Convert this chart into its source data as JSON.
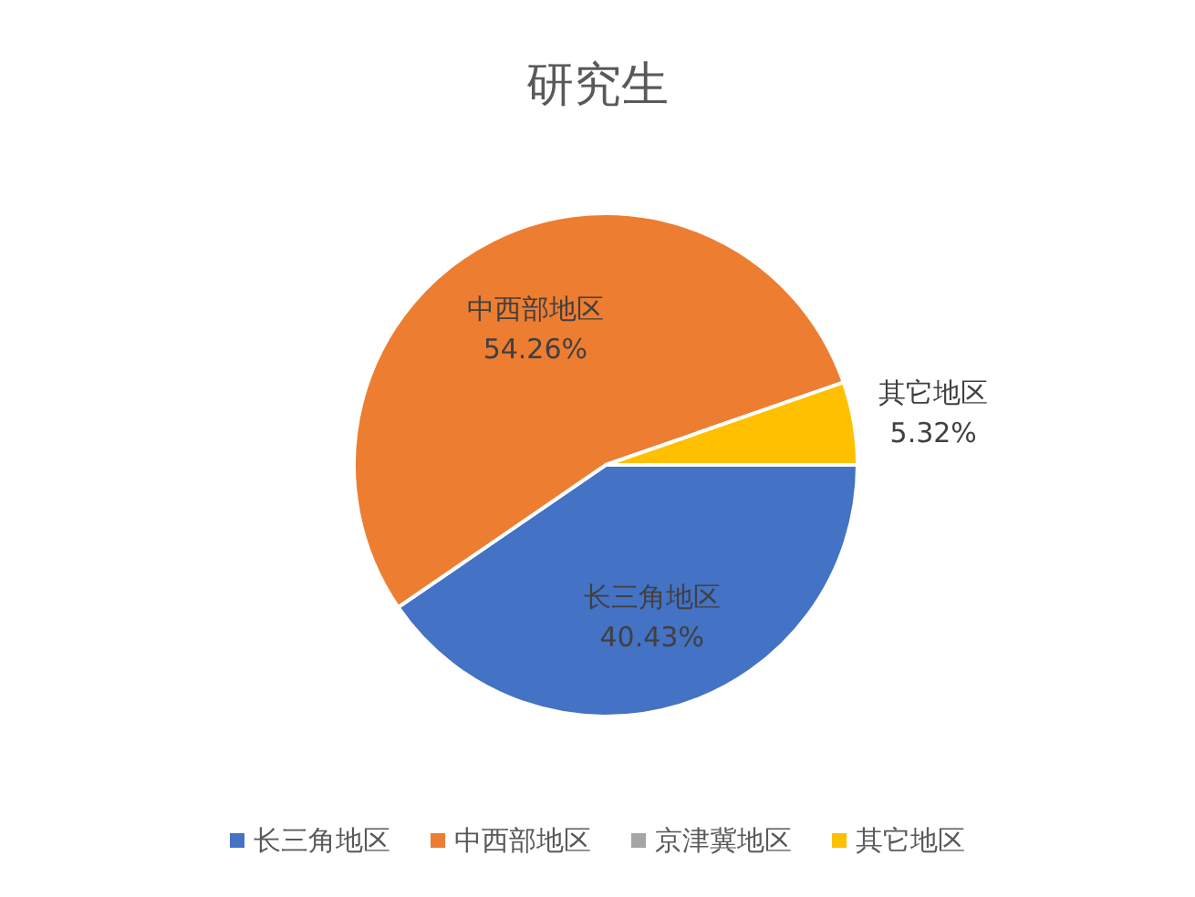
{
  "chart_data": {
    "type": "pie",
    "title": "研究生",
    "categories": [
      "长三角地区",
      "中西部地区",
      "京津冀地区",
      "其它地区"
    ],
    "values": [
      40.43,
      54.26,
      0,
      5.32
    ],
    "colors": [
      "#4472c4",
      "#ed7d31",
      "#a5a5a5",
      "#ffc000"
    ],
    "value_labels": [
      "40.43%",
      "54.26%",
      null,
      "5.32%"
    ],
    "legend": "bottom"
  }
}
